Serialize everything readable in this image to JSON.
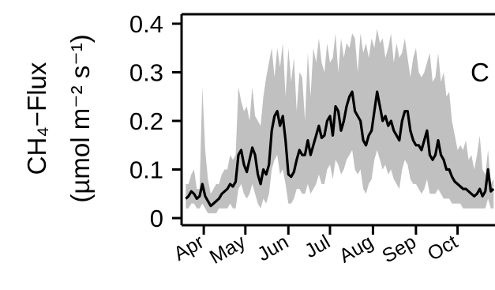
{
  "chart_data": {
    "type": "area",
    "panel_label": "C",
    "ylabel_line1": "CH₄−Flux",
    "ylabel_line2": "(µmol m⁻² s⁻¹)",
    "ylim": [
      0,
      0.4
    ],
    "yticks": [
      {
        "value": 0.4,
        "label": "0.4"
      },
      {
        "value": 0.3,
        "label": "0.3"
      },
      {
        "value": 0.2,
        "label": "0.2"
      },
      {
        "value": 0.1,
        "label": "0.1"
      },
      {
        "value": 0,
        "label": "0"
      }
    ],
    "months": [
      "Apr",
      "May",
      "Jun",
      "Jul",
      "Aug",
      "Sep",
      "Oct"
    ],
    "x_axis": "day of year",
    "xlim": [
      75,
      301
    ],
    "month_ticks_doy": [
      91,
      121,
      152,
      182,
      213,
      244,
      274
    ],
    "colors": {
      "mean_line": "#000000",
      "range_band": "#c0c0c0"
    },
    "series": [
      {
        "role": "daily mean",
        "x": [
          78,
          80,
          82,
          84,
          86,
          88,
          90,
          92,
          94,
          96,
          98,
          100,
          102,
          104,
          106,
          108,
          110,
          112,
          114,
          116,
          118,
          120,
          122,
          124,
          126,
          128,
          130,
          132,
          134,
          136,
          138,
          140,
          142,
          144,
          146,
          148,
          150,
          152,
          154,
          156,
          158,
          160,
          162,
          164,
          166,
          168,
          170,
          172,
          174,
          176,
          178,
          180,
          182,
          184,
          186,
          188,
          190,
          192,
          194,
          196,
          198,
          200,
          202,
          204,
          206,
          208,
          210,
          212,
          214,
          216,
          218,
          220,
          222,
          224,
          226,
          228,
          230,
          232,
          234,
          236,
          238,
          240,
          242,
          244,
          246,
          248,
          250,
          252,
          254,
          256,
          258,
          260,
          262,
          264,
          266,
          268,
          270,
          272,
          274,
          276,
          278,
          280,
          282,
          284,
          286,
          288,
          290,
          292,
          294,
          296,
          298,
          300
        ],
        "y": [
          0.04,
          0.045,
          0.055,
          0.05,
          0.04,
          0.045,
          0.07,
          0.045,
          0.035,
          0.025,
          0.03,
          0.035,
          0.04,
          0.05,
          0.055,
          0.06,
          0.07,
          0.065,
          0.075,
          0.13,
          0.14,
          0.11,
          0.095,
          0.12,
          0.145,
          0.13,
          0.09,
          0.07,
          0.1,
          0.09,
          0.11,
          0.18,
          0.21,
          0.22,
          0.19,
          0.21,
          0.16,
          0.09,
          0.085,
          0.095,
          0.12,
          0.14,
          0.13,
          0.13,
          0.16,
          0.13,
          0.15,
          0.17,
          0.19,
          0.165,
          0.17,
          0.2,
          0.21,
          0.17,
          0.23,
          0.22,
          0.18,
          0.2,
          0.23,
          0.25,
          0.26,
          0.22,
          0.21,
          0.2,
          0.16,
          0.15,
          0.17,
          0.18,
          0.22,
          0.26,
          0.23,
          0.2,
          0.21,
          0.19,
          0.2,
          0.18,
          0.17,
          0.16,
          0.2,
          0.22,
          0.22,
          0.18,
          0.16,
          0.15,
          0.15,
          0.14,
          0.16,
          0.18,
          0.13,
          0.12,
          0.13,
          0.16,
          0.13,
          0.12,
          0.1,
          0.1,
          0.085,
          0.075,
          0.07,
          0.065,
          0.06,
          0.06,
          0.055,
          0.05,
          0.045,
          0.05,
          0.06,
          0.045,
          0.055,
          0.1,
          0.055,
          0.06
        ]
      },
      {
        "role": "range upper",
        "y": [
          0.07,
          0.07,
          0.09,
          0.1,
          0.06,
          0.06,
          0.27,
          0.14,
          0.08,
          0.05,
          0.06,
          0.07,
          0.07,
          0.09,
          0.1,
          0.1,
          0.13,
          0.12,
          0.13,
          0.27,
          0.24,
          0.22,
          0.23,
          0.2,
          0.27,
          0.21,
          0.2,
          0.19,
          0.25,
          0.29,
          0.32,
          0.35,
          0.29,
          0.35,
          0.31,
          0.36,
          0.25,
          0.35,
          0.28,
          0.33,
          0.22,
          0.3,
          0.29,
          0.2,
          0.34,
          0.25,
          0.35,
          0.32,
          0.37,
          0.32,
          0.3,
          0.36,
          0.32,
          0.33,
          0.38,
          0.3,
          0.37,
          0.33,
          0.36,
          0.35,
          0.38,
          0.37,
          0.3,
          0.38,
          0.34,
          0.36,
          0.33,
          0.37,
          0.35,
          0.39,
          0.36,
          0.37,
          0.33,
          0.35,
          0.38,
          0.32,
          0.36,
          0.33,
          0.34,
          0.37,
          0.33,
          0.29,
          0.33,
          0.35,
          0.3,
          0.29,
          0.3,
          0.32,
          0.34,
          0.28,
          0.29,
          0.34,
          0.28,
          0.3,
          0.25,
          0.26,
          0.2,
          0.17,
          0.14,
          0.15,
          0.14,
          0.16,
          0.12,
          0.13,
          0.1,
          0.13,
          0.17,
          0.1,
          0.09,
          0.14,
          0.07,
          0.08
        ]
      },
      {
        "role": "range lower",
        "y": [
          0.02,
          0.02,
          0.03,
          0.03,
          0.02,
          0.02,
          0.03,
          0.02,
          0.01,
          0.01,
          0.01,
          0.01,
          0.02,
          0.02,
          0.02,
          0.02,
          0.03,
          0.02,
          0.02,
          0.06,
          0.07,
          0.05,
          0.04,
          0.05,
          0.07,
          0.05,
          0.03,
          0.02,
          0.04,
          0.03,
          0.05,
          0.1,
          0.12,
          0.13,
          0.09,
          0.1,
          0.07,
          0.03,
          0.03,
          0.04,
          0.06,
          0.06,
          0.05,
          0.05,
          0.07,
          0.05,
          0.06,
          0.07,
          0.09,
          0.07,
          0.07,
          0.1,
          0.11,
          0.08,
          0.12,
          0.11,
          0.09,
          0.1,
          0.12,
          0.13,
          0.14,
          0.1,
          0.09,
          0.1,
          0.06,
          0.05,
          0.07,
          0.08,
          0.12,
          0.14,
          0.12,
          0.1,
          0.11,
          0.09,
          0.1,
          0.08,
          0.07,
          0.06,
          0.1,
          0.12,
          0.11,
          0.08,
          0.07,
          0.07,
          0.06,
          0.05,
          0.06,
          0.08,
          0.05,
          0.05,
          0.05,
          0.06,
          0.05,
          0.04,
          0.04,
          0.04,
          0.03,
          0.03,
          0.03,
          0.03,
          0.02,
          0.02,
          0.02,
          0.02,
          0.02,
          0.02,
          0.02,
          0.02,
          0.02,
          0.04,
          0.02,
          0.02
        ]
      }
    ]
  }
}
